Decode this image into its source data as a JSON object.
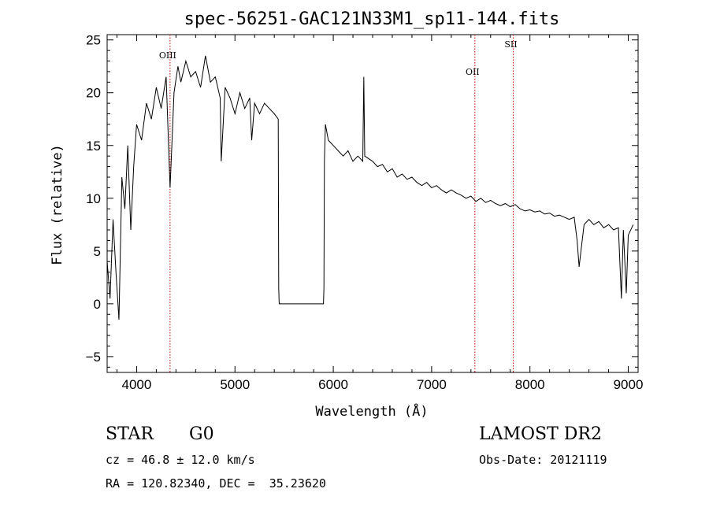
{
  "chart_data": {
    "type": "line",
    "title": "spec-56251-GAC121N33M1_sp11-144.fits",
    "xlabel": "Wavelength (Å)",
    "ylabel": "Flux (relative)",
    "xlim": [
      3700,
      9100
    ],
    "ylim": [
      -6.5,
      25.5
    ],
    "xticks": [
      4000,
      5000,
      6000,
      7000,
      8000,
      9000
    ],
    "yticks": [
      -5,
      0,
      5,
      10,
      15,
      20,
      25
    ],
    "grid": false,
    "series": [
      {
        "x": [
          3700,
          3730,
          3760,
          3790,
          3820,
          3850,
          3880,
          3910,
          3940,
          3970,
          4000,
          4050,
          4100,
          4150,
          4200,
          4250,
          4300,
          4340,
          4380,
          4420,
          4450,
          4500,
          4550,
          4600,
          4650,
          4700,
          4750,
          4800,
          4850,
          4860,
          4900,
          4950,
          5000,
          5050,
          5100,
          5150,
          5170,
          5200,
          5250,
          5300,
          5350,
          5400,
          5440,
          5445,
          5450,
          5900,
          5905,
          5910,
          5920,
          5950,
          6000,
          6050,
          6100,
          6150,
          6200,
          6250,
          6300,
          6310,
          6320,
          6400,
          6450,
          6500,
          6550,
          6600,
          6650,
          6700,
          6750,
          6800,
          6850,
          6900,
          6950,
          7000,
          7050,
          7100,
          7150,
          7200,
          7250,
          7300,
          7350,
          7400,
          7450,
          7500,
          7550,
          7600,
          7650,
          7700,
          7750,
          7800,
          7850,
          7900,
          7950,
          8000,
          8050,
          8100,
          8150,
          8200,
          8250,
          8300,
          8350,
          8400,
          8450,
          8480,
          8500,
          8550,
          8600,
          8650,
          8700,
          8750,
          8800,
          8850,
          8900,
          8930,
          8950,
          8980,
          9000,
          9050
        ],
        "y": [
          4.0,
          0.5,
          8.0,
          3.0,
          -1.5,
          12.0,
          9.0,
          15.0,
          7.0,
          13.0,
          17.0,
          15.5,
          19.0,
          17.5,
          20.5,
          18.5,
          21.5,
          11.0,
          20.0,
          22.5,
          21.0,
          23.0,
          21.5,
          22.0,
          20.5,
          23.5,
          21.0,
          21.5,
          19.5,
          13.5,
          20.5,
          19.5,
          18.0,
          20.0,
          18.5,
          19.5,
          15.5,
          19.0,
          18.0,
          19.0,
          18.5,
          18.0,
          17.5,
          1.5,
          0.0,
          0.0,
          1.5,
          13.5,
          17.0,
          15.5,
          15.0,
          14.5,
          14.0,
          14.5,
          13.5,
          14.0,
          13.5,
          21.5,
          14.0,
          13.5,
          13.0,
          13.2,
          12.5,
          12.8,
          12.0,
          12.3,
          11.8,
          12.0,
          11.5,
          11.2,
          11.5,
          11.0,
          11.2,
          10.8,
          10.5,
          10.8,
          10.5,
          10.3,
          10.0,
          10.2,
          9.7,
          10.0,
          9.6,
          9.8,
          9.5,
          9.3,
          9.5,
          9.2,
          9.4,
          9.0,
          8.8,
          8.9,
          8.7,
          8.8,
          8.5,
          8.6,
          8.3,
          8.4,
          8.2,
          8.0,
          8.2,
          6.0,
          3.5,
          7.5,
          8.0,
          7.5,
          7.8,
          7.2,
          7.5,
          7.0,
          7.2,
          0.5,
          7.0,
          1.0,
          6.5,
          7.5
        ]
      }
    ],
    "annotations": [
      {
        "label": "OIII",
        "x": 4340
      },
      {
        "label": "OII",
        "x": 7440
      },
      {
        "label": "SII",
        "x": 7830
      }
    ]
  },
  "info": {
    "class": "STAR",
    "subclass": "G0",
    "survey": "LAMOST DR2",
    "cz": "cz = 46.8 ± 12.0 km/s",
    "obs_date": "Obs-Date: 20121119",
    "radec": "RA = 120.82340, DEC =  35.23620"
  }
}
